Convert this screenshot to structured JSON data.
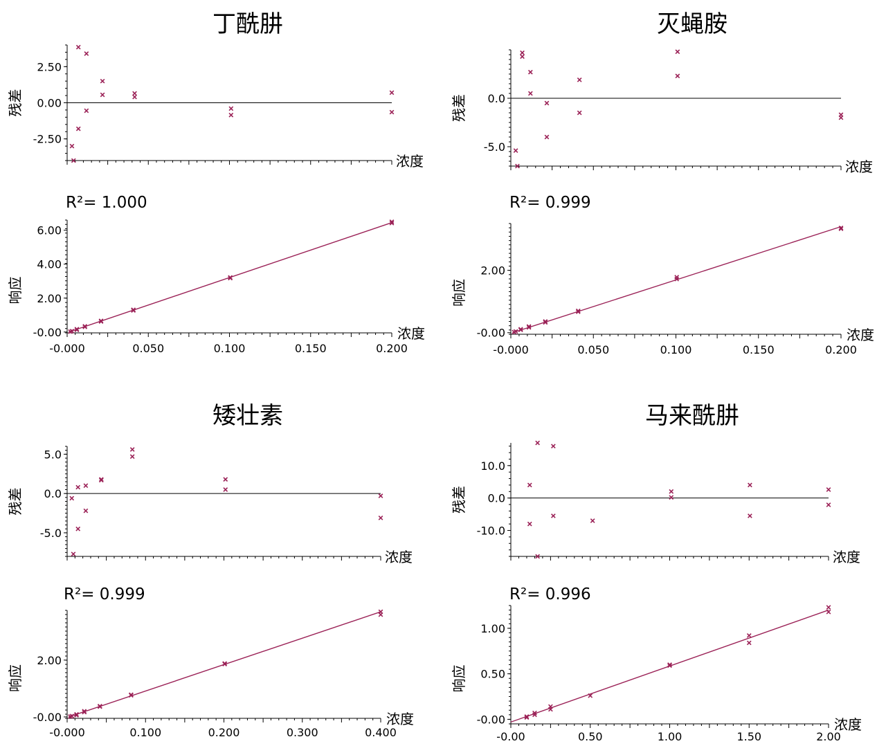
{
  "chart_data": [
    {
      "type": "scatter",
      "title": "丁酰肼",
      "residual": {
        "ylabel": "残差",
        "xlabel": "浓度",
        "yticks": [
          "2.50",
          "0.00",
          "-2.50"
        ],
        "ylim": [
          -4,
          4
        ],
        "xlim": [
          -0.002,
          0.2
        ],
        "points": [
          [
            0.001,
            -3.0
          ],
          [
            0.002,
            -4.0
          ],
          [
            0.005,
            3.85
          ],
          [
            0.005,
            -1.8
          ],
          [
            0.01,
            3.4
          ],
          [
            0.01,
            -0.55
          ],
          [
            0.02,
            1.5
          ],
          [
            0.02,
            0.55
          ],
          [
            0.04,
            0.65
          ],
          [
            0.04,
            0.4
          ],
          [
            0.1,
            -0.4
          ],
          [
            0.1,
            -0.85
          ],
          [
            0.2,
            0.7
          ],
          [
            0.2,
            -0.65
          ]
        ]
      },
      "calibration": {
        "r2_label": "R²= 1.000",
        "ylabel": "响应",
        "xlabel": "浓度",
        "xticks": [
          "-0.000",
          "0.050",
          "0.100",
          "0.150",
          "0.200"
        ],
        "yticks": [
          "6.00",
          "4.00",
          "2.00",
          "-0.00"
        ],
        "xlim": [
          -0.001,
          0.2
        ],
        "ylim": [
          -0.05,
          6.6
        ],
        "points": [
          [
            0.001,
            0.02
          ],
          [
            0.002,
            0.05
          ],
          [
            0.005,
            0.13
          ],
          [
            0.005,
            0.17
          ],
          [
            0.01,
            0.3
          ],
          [
            0.01,
            0.34
          ],
          [
            0.02,
            0.62
          ],
          [
            0.02,
            0.66
          ],
          [
            0.04,
            1.27
          ],
          [
            0.04,
            1.31
          ],
          [
            0.1,
            3.18
          ],
          [
            0.1,
            3.22
          ],
          [
            0.2,
            6.42
          ],
          [
            0.2,
            6.5
          ]
        ],
        "fit": [
          [
            0.0,
            0.0
          ],
          [
            0.2,
            6.45
          ]
        ]
      }
    },
    {
      "type": "scatter",
      "title": "灭蝇胺",
      "residual": {
        "ylabel": "残差",
        "xlabel": "浓度",
        "yticks": [
          "0.0",
          "-5.0"
        ],
        "ylim": [
          -7,
          5
        ],
        "xlim": [
          -0.002,
          0.2
        ],
        "points": [
          [
            0.001,
            -5.4
          ],
          [
            0.002,
            -7.0
          ],
          [
            0.005,
            4.7
          ],
          [
            0.005,
            4.3
          ],
          [
            0.01,
            2.7
          ],
          [
            0.01,
            0.5
          ],
          [
            0.02,
            -0.5
          ],
          [
            0.02,
            -4.0
          ],
          [
            0.04,
            1.9
          ],
          [
            0.04,
            -1.5
          ],
          [
            0.1,
            4.8
          ],
          [
            0.1,
            2.3
          ],
          [
            0.2,
            -1.7
          ],
          [
            0.2,
            -2.0
          ]
        ]
      },
      "calibration": {
        "r2_label": "R²= 0.999",
        "ylabel": "响应",
        "xlabel": "浓度",
        "xticks": [
          "-0.000",
          "0.050",
          "0.100",
          "0.150",
          "0.200"
        ],
        "yticks": [
          "2.00",
          "-0.00"
        ],
        "xlim": [
          -0.001,
          0.2
        ],
        "ylim": [
          -0.05,
          3.5
        ],
        "points": [
          [
            0.001,
            0.02
          ],
          [
            0.002,
            0.04
          ],
          [
            0.005,
            0.09
          ],
          [
            0.005,
            0.11
          ],
          [
            0.01,
            0.17
          ],
          [
            0.01,
            0.2
          ],
          [
            0.02,
            0.33
          ],
          [
            0.02,
            0.36
          ],
          [
            0.04,
            0.67
          ],
          [
            0.04,
            0.7
          ],
          [
            0.1,
            1.72
          ],
          [
            0.1,
            1.78
          ],
          [
            0.2,
            3.33
          ],
          [
            0.2,
            3.36
          ]
        ],
        "fit": [
          [
            0.0,
            0.0
          ],
          [
            0.2,
            3.4
          ]
        ]
      }
    },
    {
      "type": "scatter",
      "title": "矮壮素",
      "residual": {
        "ylabel": "残差",
        "xlabel": "浓度",
        "yticks": [
          "5.0",
          "0.0",
          "-5.0"
        ],
        "ylim": [
          -8,
          6
        ],
        "xlim": [
          -0.004,
          0.4
        ],
        "points": [
          [
            0.002,
            -0.6
          ],
          [
            0.004,
            -7.7
          ],
          [
            0.01,
            0.8
          ],
          [
            0.01,
            -4.5
          ],
          [
            0.02,
            1.0
          ],
          [
            0.02,
            -2.2
          ],
          [
            0.04,
            1.8
          ],
          [
            0.04,
            1.7
          ],
          [
            0.08,
            5.6
          ],
          [
            0.08,
            4.7
          ],
          [
            0.2,
            1.8
          ],
          [
            0.2,
            0.5
          ],
          [
            0.4,
            -0.3
          ],
          [
            0.4,
            -3.1
          ]
        ]
      },
      "calibration": {
        "r2_label": "R²= 0.999",
        "ylabel": "响应",
        "xlabel": "浓度",
        "xticks": [
          "-0.000",
          "0.100",
          "0.200",
          "0.300",
          "0.400"
        ],
        "yticks": [
          "2.00",
          "-0.00"
        ],
        "xlim": [
          -0.002,
          0.4
        ],
        "ylim": [
          -0.05,
          3.75
        ],
        "points": [
          [
            0.002,
            0.01
          ],
          [
            0.004,
            0.03
          ],
          [
            0.01,
            0.06
          ],
          [
            0.01,
            0.09
          ],
          [
            0.02,
            0.17
          ],
          [
            0.02,
            0.2
          ],
          [
            0.04,
            0.36
          ],
          [
            0.04,
            0.38
          ],
          [
            0.08,
            0.76
          ],
          [
            0.08,
            0.78
          ],
          [
            0.2,
            1.86
          ],
          [
            0.2,
            1.88
          ],
          [
            0.4,
            3.6
          ],
          [
            0.4,
            3.7
          ]
        ],
        "fit": [
          [
            0.0,
            0.0
          ],
          [
            0.4,
            3.7
          ]
        ]
      }
    },
    {
      "type": "scatter",
      "title": "马来酰肼",
      "residual": {
        "ylabel": "残差",
        "xlabel": "浓度",
        "yticks": [
          "10.0",
          "0.0",
          "-10.0"
        ],
        "ylim": [
          -18,
          17
        ],
        "xlim": [
          -0.02,
          2.0
        ],
        "points": [
          [
            0.1,
            4.0
          ],
          [
            0.1,
            -8.0
          ],
          [
            0.15,
            17.0
          ],
          [
            0.15,
            -18.0
          ],
          [
            0.25,
            16.0
          ],
          [
            0.25,
            -5.5
          ],
          [
            0.5,
            -7.0
          ],
          [
            1.0,
            2.0
          ],
          [
            1.0,
            0.2
          ],
          [
            1.5,
            4.0
          ],
          [
            1.5,
            -5.5
          ],
          [
            2.0,
            2.6
          ],
          [
            2.0,
            -2.1
          ]
        ]
      },
      "calibration": {
        "r2_label": "R²= 0.996",
        "ylabel": "响应",
        "xlabel": "浓度",
        "xticks": [
          "-0.00",
          "0.50",
          "1.00",
          "1.50",
          "2.00"
        ],
        "yticks": [
          "1.00",
          "0.50",
          "-0.00"
        ],
        "xlim": [
          0.0,
          2.0
        ],
        "ylim": [
          -0.05,
          1.25
        ],
        "points": [
          [
            0.1,
            0.03
          ],
          [
            0.1,
            0.02
          ],
          [
            0.15,
            0.07
          ],
          [
            0.15,
            0.05
          ],
          [
            0.25,
            0.14
          ],
          [
            0.25,
            0.11
          ],
          [
            0.5,
            0.26
          ],
          [
            1.0,
            0.59
          ],
          [
            1.0,
            0.6
          ],
          [
            1.5,
            0.92
          ],
          [
            1.5,
            0.84
          ],
          [
            2.0,
            1.23
          ],
          [
            2.0,
            1.18
          ]
        ],
        "fit": [
          [
            0.0,
            -0.03
          ],
          [
            2.0,
            1.2
          ]
        ]
      }
    }
  ]
}
